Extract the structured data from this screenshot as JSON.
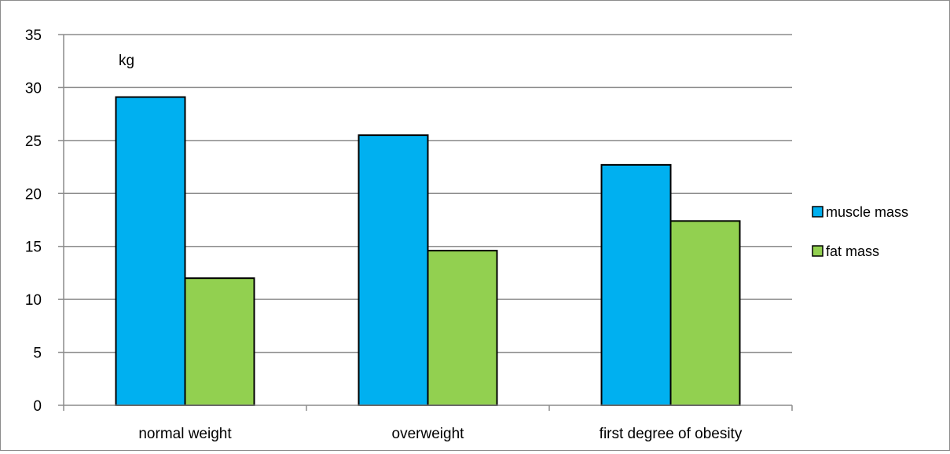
{
  "chart_data": {
    "type": "bar",
    "title": "",
    "xlabel": "",
    "ylabel": "",
    "unit_annotation": "kg",
    "categories": [
      "normal weight",
      "overweight",
      "first degree of obesity"
    ],
    "series": [
      {
        "name": "muscle mass",
        "values": [
          29.1,
          25.5,
          22.7
        ],
        "color": "#00b0f0"
      },
      {
        "name": "fat mass",
        "values": [
          12.0,
          14.6,
          17.4
        ],
        "color": "#92d050"
      }
    ],
    "ylim": [
      0,
      35
    ],
    "yticks": [
      0,
      5,
      10,
      15,
      20,
      25,
      30,
      35
    ],
    "grid": true,
    "legend_position": "right"
  }
}
